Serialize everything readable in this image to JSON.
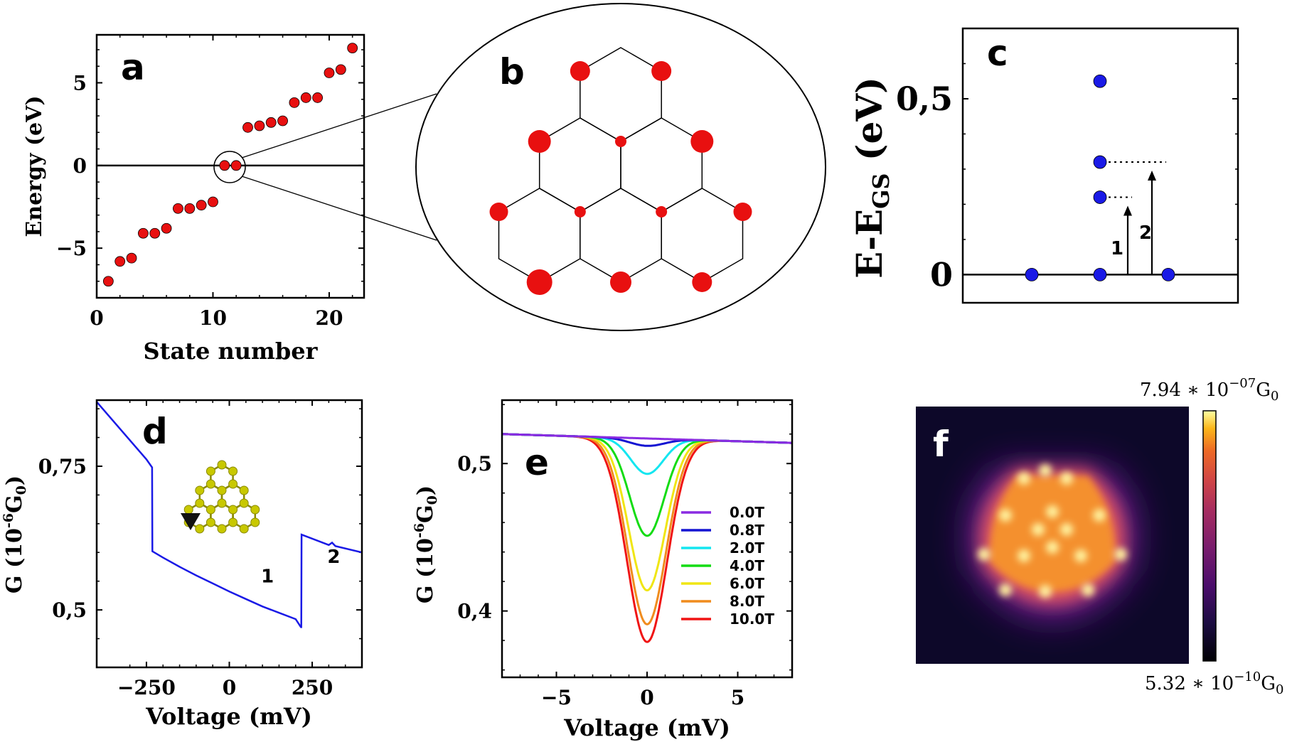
{
  "chart_data": [
    {
      "id": "a",
      "type": "scatter",
      "panel_label": "a",
      "xlabel": "State number",
      "ylabel": "Energy (eV)",
      "xlim": [
        0,
        23
      ],
      "ylim": [
        -8,
        7.9
      ],
      "xticks": [
        0,
        10,
        20
      ],
      "yticks": [
        -5,
        0,
        5
      ],
      "ytick_labels": [
        "−5",
        "0",
        "5"
      ],
      "hline": 0,
      "x": [
        1,
        2,
        3,
        4,
        5,
        6,
        7,
        8,
        9,
        10,
        11,
        12,
        13,
        14,
        15,
        16,
        17,
        18,
        19,
        20,
        21,
        22
      ],
      "y": [
        -7.0,
        -5.8,
        -5.6,
        -4.1,
        -4.1,
        -3.8,
        -2.6,
        -2.6,
        -2.4,
        -2.2,
        0.0,
        0.0,
        2.3,
        2.4,
        2.6,
        2.7,
        3.8,
        4.1,
        4.1,
        5.6,
        5.8,
        7.1
      ],
      "color": "#e81010"
    },
    {
      "id": "b",
      "type": "diagram",
      "panel_label": "b",
      "description_note": "",
      "color": "#e81010"
    },
    {
      "id": "c",
      "type": "scatter",
      "panel_label": "c",
      "ylabel_main": "E-E",
      "ylabel_sub": "GS",
      "ylabel_unit": " (eV)",
      "ylim": [
        -0.08,
        0.7
      ],
      "yticks": [
        0,
        0.5
      ],
      "ytick_labels": [
        "0",
        "0,5"
      ],
      "hline": 0,
      "points": [
        {
          "x": 1,
          "y": 0
        },
        {
          "x": 2,
          "y": 0
        },
        {
          "x": 3,
          "y": 0
        },
        {
          "x": 2,
          "y": 0.22
        },
        {
          "x": 2,
          "y": 0.32
        },
        {
          "x": 2,
          "y": 0.55
        }
      ],
      "transitions": [
        {
          "label": "1",
          "to": 0.22
        },
        {
          "label": "2",
          "to": 0.32
        }
      ],
      "color": "#1a1ae6"
    },
    {
      "id": "d",
      "type": "line",
      "panel_label": "d",
      "xlabel": "Voltage (mV)",
      "ylabel_main": "G (10",
      "ylabel_sup": "-6",
      "ylabel_tail": "G",
      "ylabel_sub": "0",
      "ylabel_close": ")",
      "xlim": [
        -400,
        400
      ],
      "ylim": [
        0.4,
        0.865
      ],
      "xticks": [
        -250,
        0,
        250
      ],
      "xtick_labels": [
        "−250",
        "0",
        "250"
      ],
      "yticks": [
        0.5,
        0.75
      ],
      "ytick_labels": [
        "0,5",
        "0,75"
      ],
      "annotations": [
        {
          "text": "1",
          "x": 115,
          "y": 0.548
        },
        {
          "text": "2",
          "x": 315,
          "y": 0.582
        }
      ],
      "series": [
        {
          "x": [
            -400,
            -250,
            -233,
            -232,
            -200,
            -150,
            -100,
            -50,
            0,
            50,
            100,
            150,
            200,
            216,
            217,
            218,
            300,
            310,
            320,
            400
          ],
          "y": [
            0.862,
            0.762,
            0.748,
            0.602,
            0.591,
            0.575,
            0.56,
            0.546,
            0.532,
            0.519,
            0.506,
            0.495,
            0.484,
            0.47,
            0.47,
            0.631,
            0.613,
            0.617,
            0.611,
            0.6
          ],
          "color": "#1a1ae6"
        }
      ]
    },
    {
      "id": "e",
      "type": "line",
      "panel_label": "e",
      "xlabel": "Voltage (mV)",
      "ylabel_main": "G (10",
      "ylabel_sup": "-6",
      "ylabel_tail": "G",
      "ylabel_sub": "0",
      "ylabel_close": ")",
      "xlim": [
        -8,
        8
      ],
      "ylim": [
        0.355,
        0.543
      ],
      "xticks": [
        -5,
        0,
        5
      ],
      "xtick_labels": [
        "−5",
        "0",
        "5"
      ],
      "yticks": [
        0.4,
        0.5
      ],
      "ytick_labels": [
        "0,4",
        "0,5"
      ],
      "legend_position": "right",
      "series": [
        {
          "name": "0.0T",
          "color": "#8a2be2",
          "dip": 0.0,
          "width": 1.1
        },
        {
          "name": "0.8T",
          "color": "#1414d2",
          "dip": 0.005,
          "width": 0.95
        },
        {
          "name": "2.0T",
          "color": "#14e6f0",
          "dip": 0.024,
          "width": 0.9
        },
        {
          "name": "4.0T",
          "color": "#14dc14",
          "dip": 0.066,
          "width": 0.95
        },
        {
          "name": "6.0T",
          "color": "#f0e614",
          "dip": 0.103,
          "width": 1.0
        },
        {
          "name": "8.0T",
          "color": "#f08c1e",
          "dip": 0.126,
          "width": 1.05
        },
        {
          "name": "10.0T",
          "color": "#f01414",
          "dip": 0.138,
          "width": 1.1
        }
      ],
      "baseline": {
        "y_at_xmin": 0.52,
        "y_at_xmax": 0.514
      }
    },
    {
      "id": "f",
      "type": "heatmap",
      "panel_label": "f",
      "colorbar_max_mantissa": "7.94",
      "colorbar_max_exp": "−07",
      "colorbar_min_mantissa": "5.32",
      "colorbar_min_exp": "−10",
      "colorbar_unit": "G",
      "colorbar_unit_sub": "0",
      "colormap": "plasma",
      "background": "#0d0829"
    }
  ]
}
